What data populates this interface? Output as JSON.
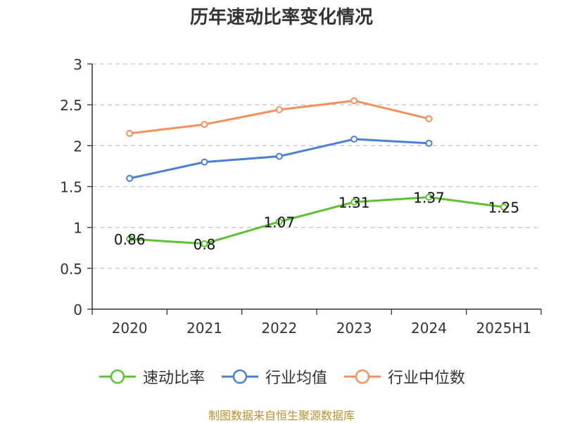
{
  "title": "历年速动比率变化情况",
  "source": "制图数据来自恒生聚源数据库",
  "chart_data": {
    "type": "line",
    "categories": [
      "2020",
      "2021",
      "2022",
      "2023",
      "2024",
      "2025H1"
    ],
    "ylim": [
      0,
      3
    ],
    "yticks": [
      "0",
      "0.5",
      "1",
      "1.5",
      "2",
      "2.5",
      "3"
    ],
    "grid": true,
    "legend_position": "bottom",
    "series": [
      {
        "name": "速动比率",
        "color": "#5cc22e",
        "values": [
          0.86,
          0.8,
          1.07,
          1.31,
          1.37,
          1.25
        ],
        "labels": [
          "0.86",
          "0.8",
          "1.07",
          "1.31",
          "1.37",
          "1.25"
        ]
      },
      {
        "name": "行业均值",
        "color": "#4a7fd6",
        "values": [
          1.6,
          1.8,
          1.87,
          2.08,
          2.03,
          null
        ]
      },
      {
        "name": "行业中位数",
        "color": "#f5905a",
        "values": [
          2.15,
          2.26,
          2.44,
          2.55,
          2.33,
          null
        ]
      }
    ]
  }
}
